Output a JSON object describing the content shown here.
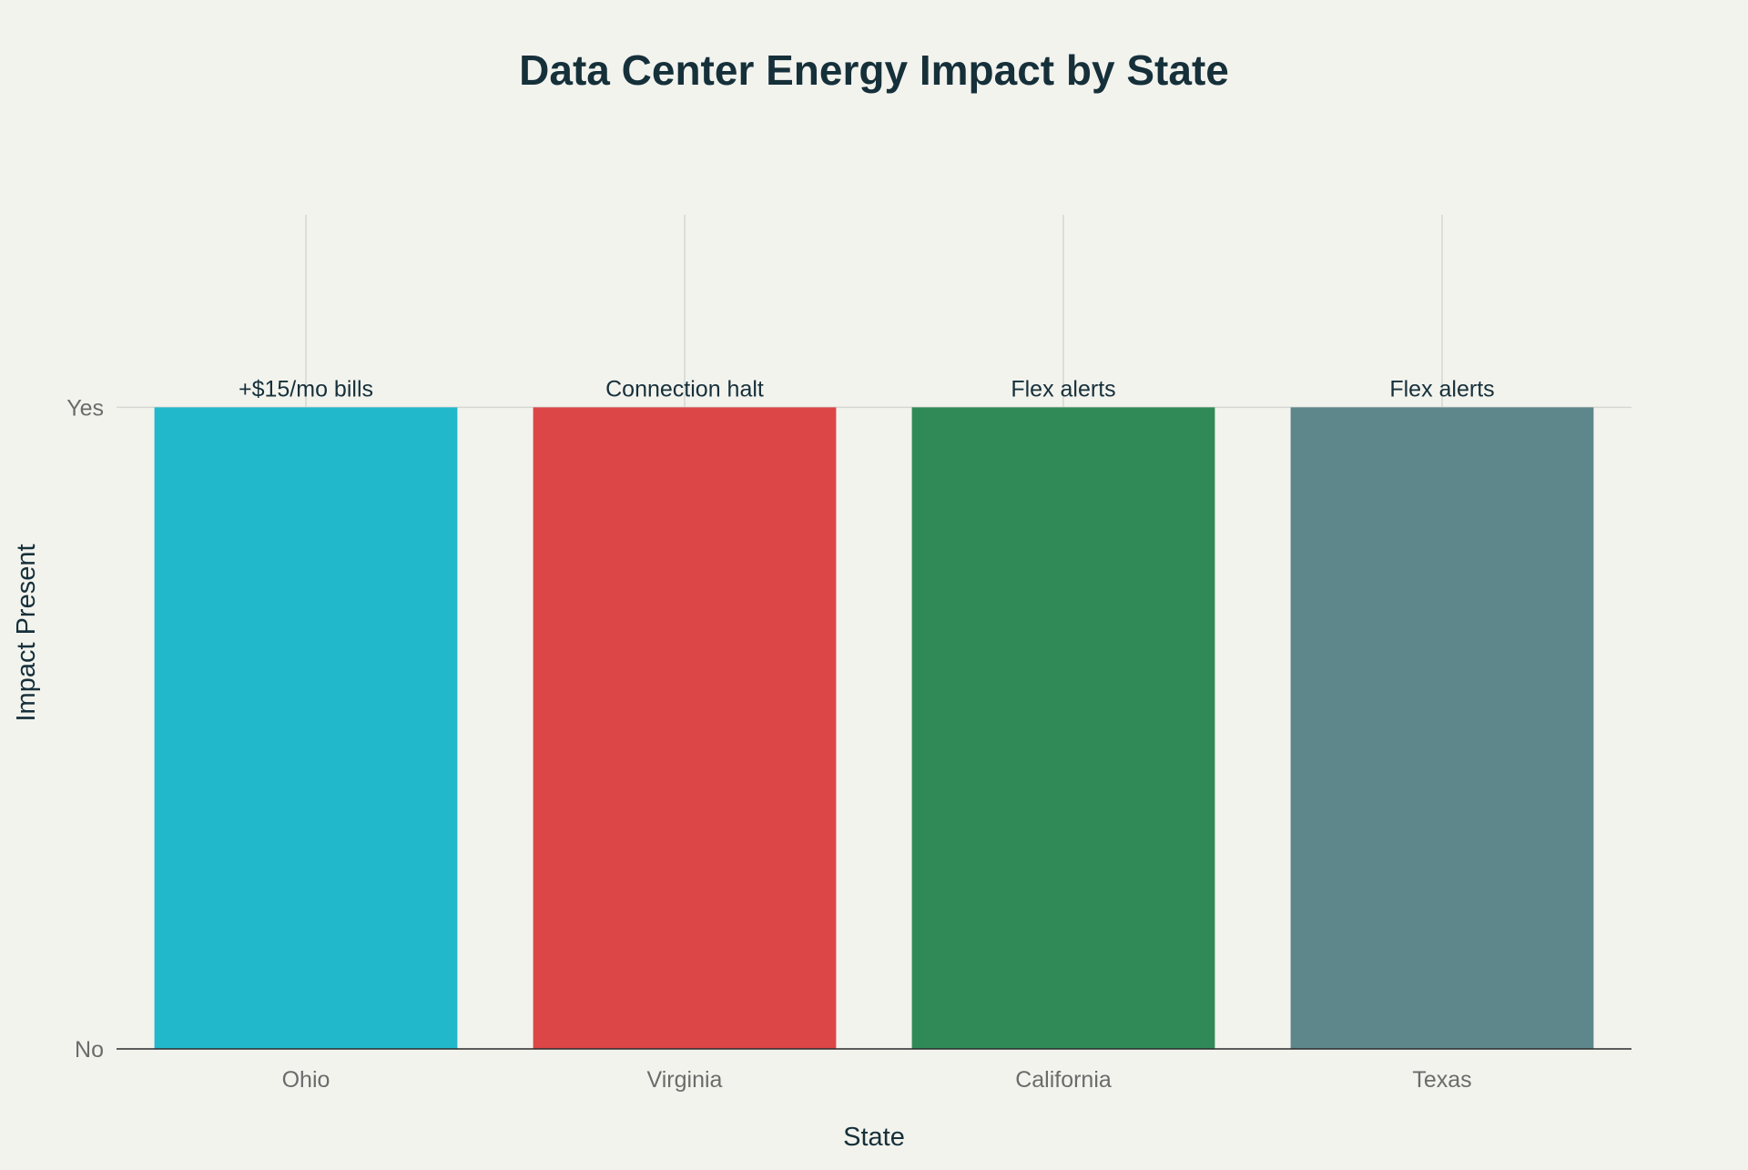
{
  "chart_data": {
    "type": "bar",
    "title": "Data Center Energy Impact by State",
    "xlabel": "State",
    "ylabel": "Impact Present",
    "categories": [
      "Ohio",
      "Virginia",
      "California",
      "Texas"
    ],
    "values": [
      1,
      1,
      1,
      1
    ],
    "bar_labels": [
      "+$15/mo bills",
      "Connection halt",
      "Flex alerts",
      "Flex alerts"
    ],
    "colors": [
      "#21b8cb",
      "#dc4647",
      "#2f8a58",
      "#5e878c"
    ],
    "yticks": [
      {
        "value": 0,
        "label": "No"
      },
      {
        "value": 1,
        "label": "Yes"
      }
    ],
    "ylim": [
      0,
      1.3
    ],
    "grid": true,
    "legend": "none"
  }
}
